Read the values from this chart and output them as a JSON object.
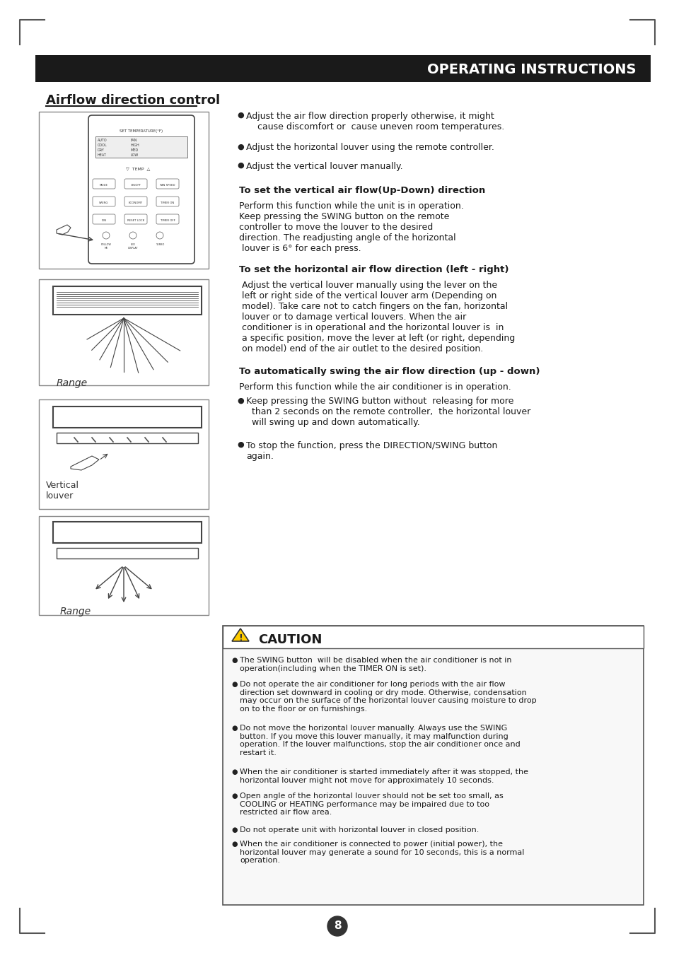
{
  "page_title": "OPERATING INSTRUCTIONS",
  "section_title": "Airflow direction control",
  "bullet_points": [
    "Adjust the air flow direction properly otherwise, it might\n    cause discomfort or  cause uneven room temperatures.",
    "Adjust the horizontal louver using the remote controller.",
    "Adjust the vertical louver manually."
  ],
  "subsection1_title": "To set the vertical air flow(Up-Down) direction",
  "subsection1_body": "Perform this function while the unit is in operation.\nKeep pressing the SWING button on the remote\ncontroller to move the louver to the desired\ndirection. The readjusting angle of the horizontal\n louver is 6° for each press.",
  "subsection2_title": "To set the horizontal air flow direction (left - right)",
  "subsection2_body": " Adjust the vertical louver manually using the lever on the\n left or right side of the vertical louver arm (Depending on\n model). Take care not to catch fingers on the fan, horizontal\n louver or to damage vertical louvers. When the air\n conditioner is in operational and the horizontal louver is  in\n a specific position, move the lever at left (or right, depending\n on model) end of the air outlet to the desired position.",
  "subsection3_title": "To automatically swing the air flow direction (up - down)",
  "subsection3_body": "Perform this function while the air conditioner is in operation.",
  "subsection3_bullets": [
    "Keep pressing the SWING button without  releasing for more\n  than 2 seconds on the remote controller,  the horizontal louver\n  will swing up and down automatically.",
    "To stop the function, press the DIRECTION/SWING button\nagain."
  ],
  "caution_title": "CAUTION",
  "caution_bullets": [
    "The SWING button  will be disabled when the air conditioner is not in\noperation(including when the TIMER ON is set).",
    "Do not operate the air conditioner for long periods with the air flow\ndirection set downward in cooling or dry mode. Otherwise, condensation\nmay occur on the surface of the horizontal louver causing moisture to drop\non to the floor or on furnishings.",
    "Do not move the horizontal louver manually. Always use the SWING\nbutton. If you move this louver manually, it may malfunction during\noperation. If the louver malfunctions, stop the air conditioner once and\nrestart it.",
    "When the air conditioner is started immediately after it was stopped, the\nhorizontal louver might not move for approximately 10 seconds.",
    "Open angle of the horizontal louver should not be set too small, as\nCOOLING or HEATING performance may be impaired due to too\nrestricted air flow area.",
    "Do not operate unit with horizontal louver in closed position.",
    "When the air conditioner is connected to power (initial power), the\nhorizontal louver may generate a sound for 10 seconds, this is a normal\noperation."
  ],
  "page_number": "8",
  "bg_color": "#ffffff",
  "text_color": "#1a1a1a",
  "title_bar_color": "#1a1a1a",
  "caution_bg": "#f8f8f8",
  "caution_border": "#555555"
}
